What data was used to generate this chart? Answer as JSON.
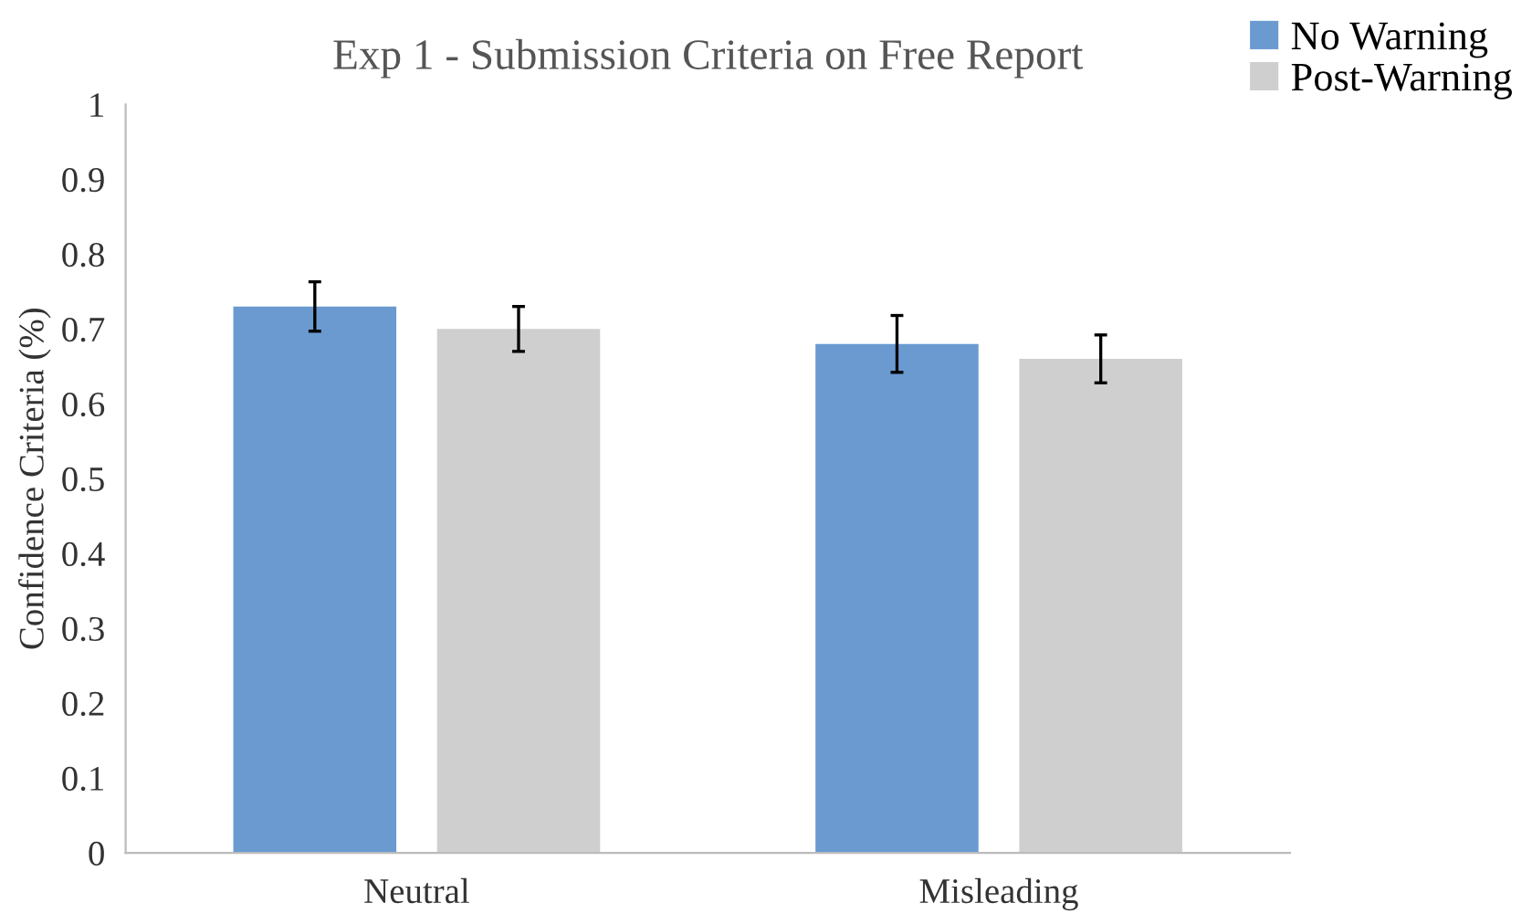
{
  "chart_data": {
    "type": "bar",
    "title": "Exp 1 - Submission Criteria on Free Report",
    "ylabel": "Confidence Criteria (%)",
    "categories": [
      "Neutral",
      "Misleading"
    ],
    "series": [
      {
        "name": "No Warning",
        "color": "#6a9ad0",
        "values": [
          0.73,
          0.68
        ],
        "errors": [
          0.033,
          0.038
        ]
      },
      {
        "name": "Post-Warning",
        "color": "#d0cfd0",
        "values": [
          0.7,
          0.66
        ],
        "errors": [
          0.03,
          0.032
        ]
      }
    ],
    "ylim": [
      0,
      1
    ],
    "yticks": [
      0,
      0.1,
      0.2,
      0.3,
      0.4,
      0.5,
      0.6,
      0.7,
      0.8,
      0.9,
      1
    ],
    "grid": false,
    "legend": "top right"
  }
}
